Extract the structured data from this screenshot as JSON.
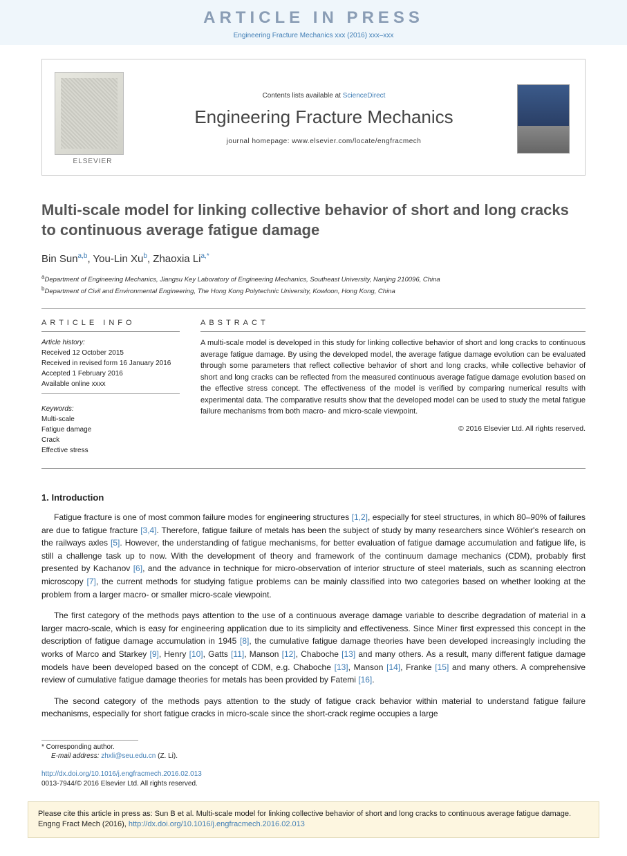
{
  "press": {
    "title": "ARTICLE IN PRESS",
    "citation": "Engineering Fracture Mechanics xxx (2016) xxx–xxx"
  },
  "header": {
    "publisher": "ELSEVIER",
    "contents_prefix": "Contents lists available at ",
    "contents_link": "ScienceDirect",
    "journal": "Engineering Fracture Mechanics",
    "homepage_label": "journal homepage: ",
    "homepage_url": "www.elsevier.com/locate/engfracmech"
  },
  "title": "Multi-scale model for linking collective behavior of short and long cracks to continuous average fatigue damage",
  "authors_html": {
    "a1_name": "Bin Sun",
    "a1_sup": "a,b",
    "a2_name": "You-Lin Xu",
    "a2_sup": "b",
    "a3_name": "Zhaoxia Li",
    "a3_sup": "a,",
    "a3_star": "*"
  },
  "affiliations": {
    "a": "Department of Engineering Mechanics, Jiangsu Key Laboratory of Engineering Mechanics, Southeast University, Nanjing 210096, China",
    "b": "Department of Civil and Environmental Engineering, The Hong Kong Polytechnic University, Kowloon, Hong Kong, China"
  },
  "article_info": {
    "head": "article info",
    "history_label": "Article history:",
    "received": "Received 12 October 2015",
    "revised": "Received in revised form 16 January 2016",
    "accepted": "Accepted 1 February 2016",
    "online": "Available online xxxx",
    "keywords_label": "Keywords:",
    "keywords": [
      "Multi-scale",
      "Fatigue damage",
      "Crack",
      "Effective stress"
    ]
  },
  "abstract": {
    "head": "abstract",
    "text": "A multi-scale model is developed in this study for linking collective behavior of short and long cracks to continuous average fatigue damage. By using the developed model, the average fatigue damage evolution can be evaluated through some parameters that reflect collective behavior of short and long cracks, while collective behavior of short and long cracks can be reflected from the measured continuous average fatigue damage evolution based on the effective stress concept. The effectiveness of the model is verified by comparing numerical results with experimental data. The comparative results show that the developed model can be used to study the metal fatigue failure mechanisms from both macro- and micro-scale viewpoint.",
    "copyright": "© 2016 Elsevier Ltd. All rights reserved."
  },
  "introduction": {
    "head": "1. Introduction",
    "p1_a": "Fatigue fracture is one of most common failure modes for engineering structures ",
    "p1_ref1": "[1,2]",
    "p1_b": ", especially for steel structures, in which 80–90% of failures are due to fatigue fracture ",
    "p1_ref2": "[3,4]",
    "p1_c": ". Therefore, fatigue failure of metals has been the subject of study by many researchers since Wöhler's research on the railways axles ",
    "p1_ref3": "[5]",
    "p1_d": ". However, the understanding of fatigue mechanisms, for better evaluation of fatigue damage accumulation and fatigue life, is still a challenge task up to now. With the development of theory and framework of the continuum damage mechanics (CDM), probably first presented by Kachanov ",
    "p1_ref4": "[6]",
    "p1_e": ", and the advance in technique for micro-observation of interior structure of steel materials, such as scanning electron microscopy ",
    "p1_ref5": "[7]",
    "p1_f": ", the current methods for studying fatigue problems can be mainly classified into two categories based on whether looking at the problem from a larger macro- or smaller micro-scale viewpoint.",
    "p2_a": "The first category of the methods pays attention to the use of a continuous average damage variable to describe degradation of material in a larger macro-scale, which is easy for engineering application due to its simplicity and effectiveness. Since Miner first expressed this concept in the description of fatigue damage accumulation in 1945 ",
    "p2_ref1": "[8]",
    "p2_b": ", the cumulative fatigue damage theories have been developed increasingly including the works of Marco and Starkey ",
    "p2_ref2": "[9]",
    "p2_c": ", Henry ",
    "p2_ref3": "[10]",
    "p2_d": ", Gatts ",
    "p2_ref4": "[11]",
    "p2_e": ", Manson ",
    "p2_ref5": "[12]",
    "p2_f": ", Chaboche ",
    "p2_ref6": "[13]",
    "p2_g": " and many others. As a result, many different fatigue damage models have been developed based on the concept of CDM, e.g. Chaboche ",
    "p2_ref7": "[13]",
    "p2_h": ", Manson ",
    "p2_ref8": "[14]",
    "p2_i": ", Franke ",
    "p2_ref9": "[15]",
    "p2_j": " and many others. A comprehensive review of cumulative fatigue damage theories for metals has been provided by Fatemi ",
    "p2_ref10": "[16]",
    "p2_k": ".",
    "p3": "The second category of the methods pays attention to the study of fatigue crack behavior within material to understand fatigue failure mechanisms, especially for short fatigue cracks in micro-scale since the short-crack regime occupies a large"
  },
  "footer": {
    "corr_label": "* Corresponding author.",
    "email_label": "E-mail address: ",
    "email": "zhxli@seu.edu.cn",
    "email_suffix": " (Z. Li).",
    "doi_url": "http://dx.doi.org/10.1016/j.engfracmech.2016.02.013",
    "issn_line": "0013-7944/© 2016 Elsevier Ltd. All rights reserved."
  },
  "citebox": {
    "text_a": "Please cite this article in press as: Sun B et al. Multi-scale model for linking collective behavior of short and long cracks to continuous average fatigue damage. Engng Fract Mech (2016), ",
    "url": "http://dx.doi.org/10.1016/j.engfracmech.2016.02.013"
  },
  "colors": {
    "link": "#3f7db5",
    "press_bg": "#eff6fb",
    "citebox_bg": "#fdf6e0"
  }
}
